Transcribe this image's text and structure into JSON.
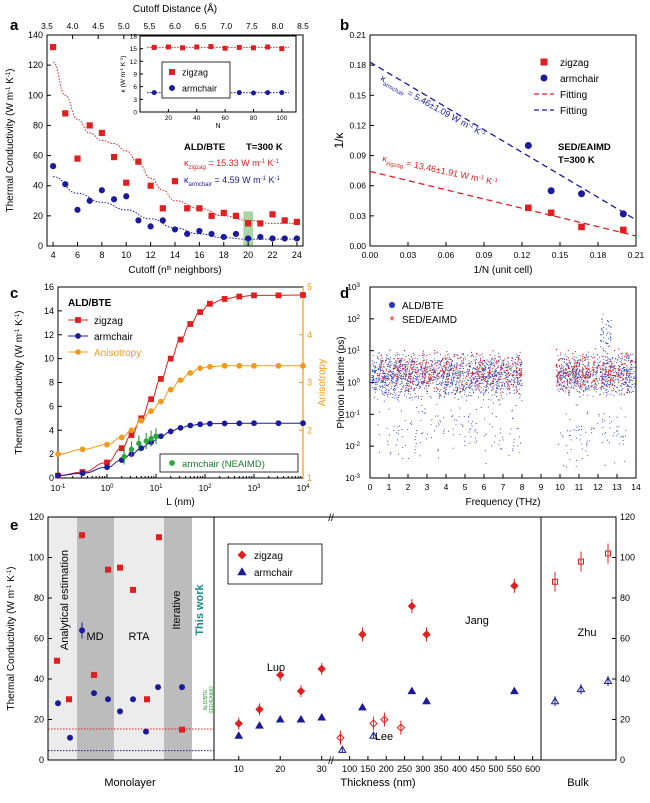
{
  "chart_data": [
    {
      "panel": "a",
      "type": "scatter",
      "xlabel": "Cutoff (n",
      "xlabel_sup": "th",
      "xlabel_tail": " neighbors)",
      "ylabel": "Thermal Conductivity (W m",
      "ylabel_sup1": "-1",
      "ylabel_mid": " K",
      "ylabel_sup2": "-1",
      "ylabel_tail": ")",
      "top_xlabel": "Cutoff Distance (Å)",
      "xlim": [
        3.5,
        24.5
      ],
      "ylim": [
        0,
        140
      ],
      "x_ticks": [
        4,
        6,
        8,
        10,
        12,
        14,
        16,
        18,
        20,
        22,
        24
      ],
      "y_ticks": [
        0,
        20,
        40,
        60,
        80,
        100,
        120,
        140
      ],
      "top_ticks": [
        "3.5",
        "4.0",
        "4.5",
        "5.0",
        "5.5",
        "6.0",
        "6.5",
        "7.0",
        "7.5",
        "8.0",
        "8.5"
      ],
      "annotation_method": "ALD/BTE",
      "annotation_temp": "T=300 K",
      "annotation_zigzag": "= 15.33 W m",
      "annotation_armchair": "= 4.59 W m",
      "kappa_symbol": "κ",
      "sub_zigzag": "zigzag",
      "sub_armchair": "armchair",
      "unit_tail": "-1",
      "unit_k": " K",
      "series": [
        {
          "name": "zigzag",
          "color": "#e02020",
          "marker": "square",
          "x": [
            4,
            5,
            6,
            7,
            8,
            9,
            10,
            11,
            12,
            13,
            14,
            15,
            16,
            17,
            18,
            19,
            20,
            21,
            22,
            23,
            24
          ],
          "y": [
            132,
            88,
            58,
            80,
            75,
            59,
            42,
            56,
            40,
            25,
            43,
            25,
            25,
            20,
            22,
            20,
            15,
            15,
            21,
            17,
            16
          ]
        },
        {
          "name": "armchair",
          "color": "#1a1a9a",
          "marker": "circle",
          "x": [
            4,
            5,
            6,
            7,
            8,
            9,
            10,
            11,
            12,
            13,
            14,
            15,
            16,
            17,
            18,
            19,
            20,
            21,
            22,
            23,
            24
          ],
          "y": [
            53,
            41,
            24,
            30,
            37,
            31,
            33,
            17,
            13,
            17,
            11,
            8,
            10,
            8,
            6,
            8,
            5,
            6,
            5,
            5,
            5
          ]
        }
      ],
      "inset": {
        "ylabel": "κ (W m",
        "ylabel_tail": "-1",
        "ylabel_k": " K",
        "ylabel_end": "-1",
        "ylabel_close": ")",
        "xlabel": "N",
        "xlim": [
          0,
          110
        ],
        "ylim": [
          0,
          18
        ],
        "x_ticks": [
          20,
          40,
          60,
          80,
          100
        ],
        "y_ticks": [
          0,
          3,
          6,
          9,
          12,
          15,
          18
        ],
        "legend": [
          "zigzag",
          "armchair"
        ],
        "zigzag_x": [
          10,
          20,
          30,
          40,
          50,
          60,
          70,
          80,
          90,
          100
        ],
        "zigzag_y": [
          15.3,
          15.4,
          15.2,
          15.4,
          15.5,
          15.1,
          15.3,
          15.2,
          15.4,
          15.0
        ],
        "armchair_x": [
          10,
          20,
          30,
          40,
          50,
          60,
          70,
          80,
          90,
          100
        ],
        "armchair_y": [
          4.6,
          4.5,
          4.6,
          4.6,
          4.5,
          4.6,
          4.6,
          4.5,
          4.6,
          4.6
        ]
      }
    },
    {
      "panel": "b",
      "type": "scatter",
      "xlabel": "1/N (unit cell)",
      "ylabel": "1/κ",
      "xlim": [
        0,
        0.21
      ],
      "ylim": [
        0,
        0.21
      ],
      "x_ticks": [
        "0.00",
        "0.03",
        "0.06",
        "0.09",
        "0.12",
        "0.15",
        "0.18",
        "0.21"
      ],
      "x_tick_vals": [
        0,
        0.03,
        0.06,
        0.09,
        0.12,
        0.15,
        0.18,
        0.21
      ],
      "y_ticks": [
        "0.00",
        "0.03",
        "0.06",
        "0.09",
        "0.12",
        "0.15",
        "0.18",
        "0.21"
      ],
      "y_tick_vals": [
        0,
        0.03,
        0.06,
        0.09,
        0.12,
        0.15,
        0.18,
        0.21
      ],
      "legend": [
        "zigzag",
        "armchair",
        "Fitting",
        "Fitting"
      ],
      "annotation": "SED/EAIMD",
      "annotation2": "T=300 K",
      "fit_armchair_label": "= 5.46±1.09 W m",
      "fit_zigzag_label": "= 13.46±1.91 W m",
      "series": [
        {
          "name": "zigzag",
          "color": "#e02020",
          "x": [
            0.125,
            0.143,
            0.167,
            0.2
          ],
          "y": [
            0.038,
            0.033,
            0.019,
            0.016
          ]
        },
        {
          "name": "armchair",
          "color": "#1a1a9a",
          "x": [
            0.125,
            0.143,
            0.167,
            0.2
          ],
          "y": [
            0.1,
            0.055,
            0.052,
            0.032
          ]
        }
      ],
      "fit_zigzag": [
        [
          0,
          0.0743
        ],
        [
          0.21,
          0.01
        ]
      ],
      "fit_armchair": [
        [
          0,
          0.183
        ],
        [
          0.21,
          0.026
        ]
      ]
    },
    {
      "panel": "c",
      "type": "line",
      "xlabel": "L (nm)",
      "ylabel": "Thermal Conductivity (W m",
      "y2label": "Anisotropy",
      "xlim_log": [
        -1,
        4
      ],
      "ylim": [
        0,
        16
      ],
      "y2lim": [
        1,
        5
      ],
      "x_ticks": [
        "10",
        "10",
        "10",
        "10",
        "10",
        "10"
      ],
      "x_tick_exp": [
        "-1",
        "0",
        "1",
        "2",
        "3",
        "4"
      ],
      "y_ticks": [
        0,
        2,
        4,
        6,
        8,
        10,
        12,
        14,
        16
      ],
      "y2_ticks": [
        1,
        2,
        3,
        4,
        5
      ],
      "annotation": "ALD/BTE",
      "legend": [
        "zigzag",
        "armchair",
        "Anisotropy"
      ],
      "legend_box": "armchair (NEAIMD)",
      "zigzag_logx": [
        -1,
        -0.5,
        0,
        0.3,
        0.5,
        0.7,
        0.9,
        1.1,
        1.3,
        1.5,
        1.7,
        1.9,
        2.1,
        2.4,
        2.7,
        3,
        3.5,
        4
      ],
      "zigzag_y": [
        0.2,
        0.5,
        1.3,
        2.5,
        3.6,
        5,
        6.6,
        8.3,
        10,
        11.6,
        12.9,
        13.9,
        14.6,
        15,
        15.2,
        15.3,
        15.3,
        15.33
      ],
      "armchair_logx": [
        -1,
        -0.5,
        0,
        0.3,
        0.5,
        0.7,
        0.9,
        1.1,
        1.3,
        1.5,
        1.7,
        1.9,
        2.1,
        2.4,
        2.7,
        3,
        3.5,
        4
      ],
      "armchair_y": [
        0.2,
        0.4,
        0.9,
        1.5,
        2,
        2.5,
        3,
        3.5,
        3.9,
        4.2,
        4.4,
        4.5,
        4.55,
        4.57,
        4.58,
        4.59,
        4.59,
        4.59
      ],
      "anisotropy_logx": [
        -1,
        -0.5,
        0,
        0.3,
        0.5,
        0.7,
        0.9,
        1.1,
        1.3,
        1.5,
        1.7,
        1.9,
        2.1,
        2.4,
        2.7,
        3,
        3.5,
        4
      ],
      "anisotropy_y": [
        1.5,
        1.6,
        1.7,
        1.85,
        2,
        2.2,
        2.4,
        2.6,
        2.85,
        3.05,
        3.2,
        3.3,
        3.33,
        3.35,
        3.35,
        3.35,
        3.35,
        3.35
      ],
      "neaimd_logx": [
        0.35,
        0.5,
        0.65,
        0.8,
        0.9,
        1
      ],
      "neaimd_y": [
        1.8,
        2.4,
        2.9,
        3.1,
        3.3,
        3.5
      ]
    },
    {
      "panel": "d",
      "type": "scatter",
      "xlabel": "Frequency (THz)",
      "ylabel": "Phonon Lifetime (ps)",
      "xlim": [
        0,
        14
      ],
      "ylim_log": [
        -3,
        3
      ],
      "x_ticks": [
        0,
        1,
        2,
        3,
        4,
        5,
        6,
        7,
        8,
        9,
        10,
        11,
        12,
        13,
        14
      ],
      "y_ticks": [
        "10",
        "10",
        "10",
        "10",
        "10",
        "10",
        "10"
      ],
      "y_tick_exp": [
        "-3",
        "-2",
        "-1",
        "0",
        "1",
        "2",
        "3"
      ],
      "legend": [
        "ALD/BTE",
        "SED/EAIMD"
      ]
    },
    {
      "panel": "e",
      "type": "scatter",
      "ylabel": "Thermal Conductivity (W m",
      "ylim": [
        0,
        120
      ],
      "y_ticks": [
        0,
        20,
        40,
        60,
        80,
        100,
        120
      ],
      "section_monolayer": "Monolayer",
      "section_thickness": "Thickness (nm)",
      "section_bulk": "Bulk",
      "band_labels": [
        "Analytical estimation",
        "MD",
        "RTA",
        "Iterative"
      ],
      "this_work": "This work",
      "this_work_sub1": "ALD/BTE",
      "this_work_sub2": "SED/EAIMD",
      "ref_labels": [
        "Luo",
        "Lee",
        "Jang",
        "Zhu"
      ],
      "legend": [
        "zigzag",
        "armchair"
      ],
      "x_ticks_thickness": [
        10,
        20,
        30,
        100,
        150,
        200,
        250,
        300,
        350,
        400,
        450,
        500,
        550,
        600
      ],
      "mono_zigzag": [
        49,
        30,
        111,
        42,
        94,
        95,
        84,
        30,
        110,
        15
      ],
      "mono_armchair": [
        28,
        11,
        64,
        33,
        30,
        24,
        30,
        14,
        36,
        36
      ],
      "luo_zigzag": [
        [
          10,
          18
        ],
        [
          15,
          25
        ],
        [
          20,
          42
        ],
        [
          25,
          34
        ],
        [
          30,
          45
        ]
      ],
      "luo_armchair": [
        [
          10,
          12
        ],
        [
          15,
          17
        ],
        [
          20,
          20
        ],
        [
          25,
          20
        ],
        [
          30,
          21
        ]
      ],
      "thick_zigzag": [
        [
          75,
          11
        ],
        [
          135,
          62
        ],
        [
          165,
          18
        ],
        [
          195,
          20
        ],
        [
          240,
          16
        ],
        [
          270,
          76
        ],
        [
          310,
          62
        ],
        [
          550,
          86
        ]
      ],
      "thick_armchair": [
        [
          80,
          5
        ],
        [
          135,
          26
        ],
        [
          165,
          12
        ],
        [
          270,
          34
        ],
        [
          310,
          29
        ],
        [
          550,
          34
        ]
      ],
      "bulk_zigzag": [
        88,
        98,
        102
      ],
      "bulk_armchair": [
        29,
        35,
        39
      ]
    }
  ],
  "panel_labels": [
    "a",
    "b",
    "c",
    "d",
    "e"
  ]
}
